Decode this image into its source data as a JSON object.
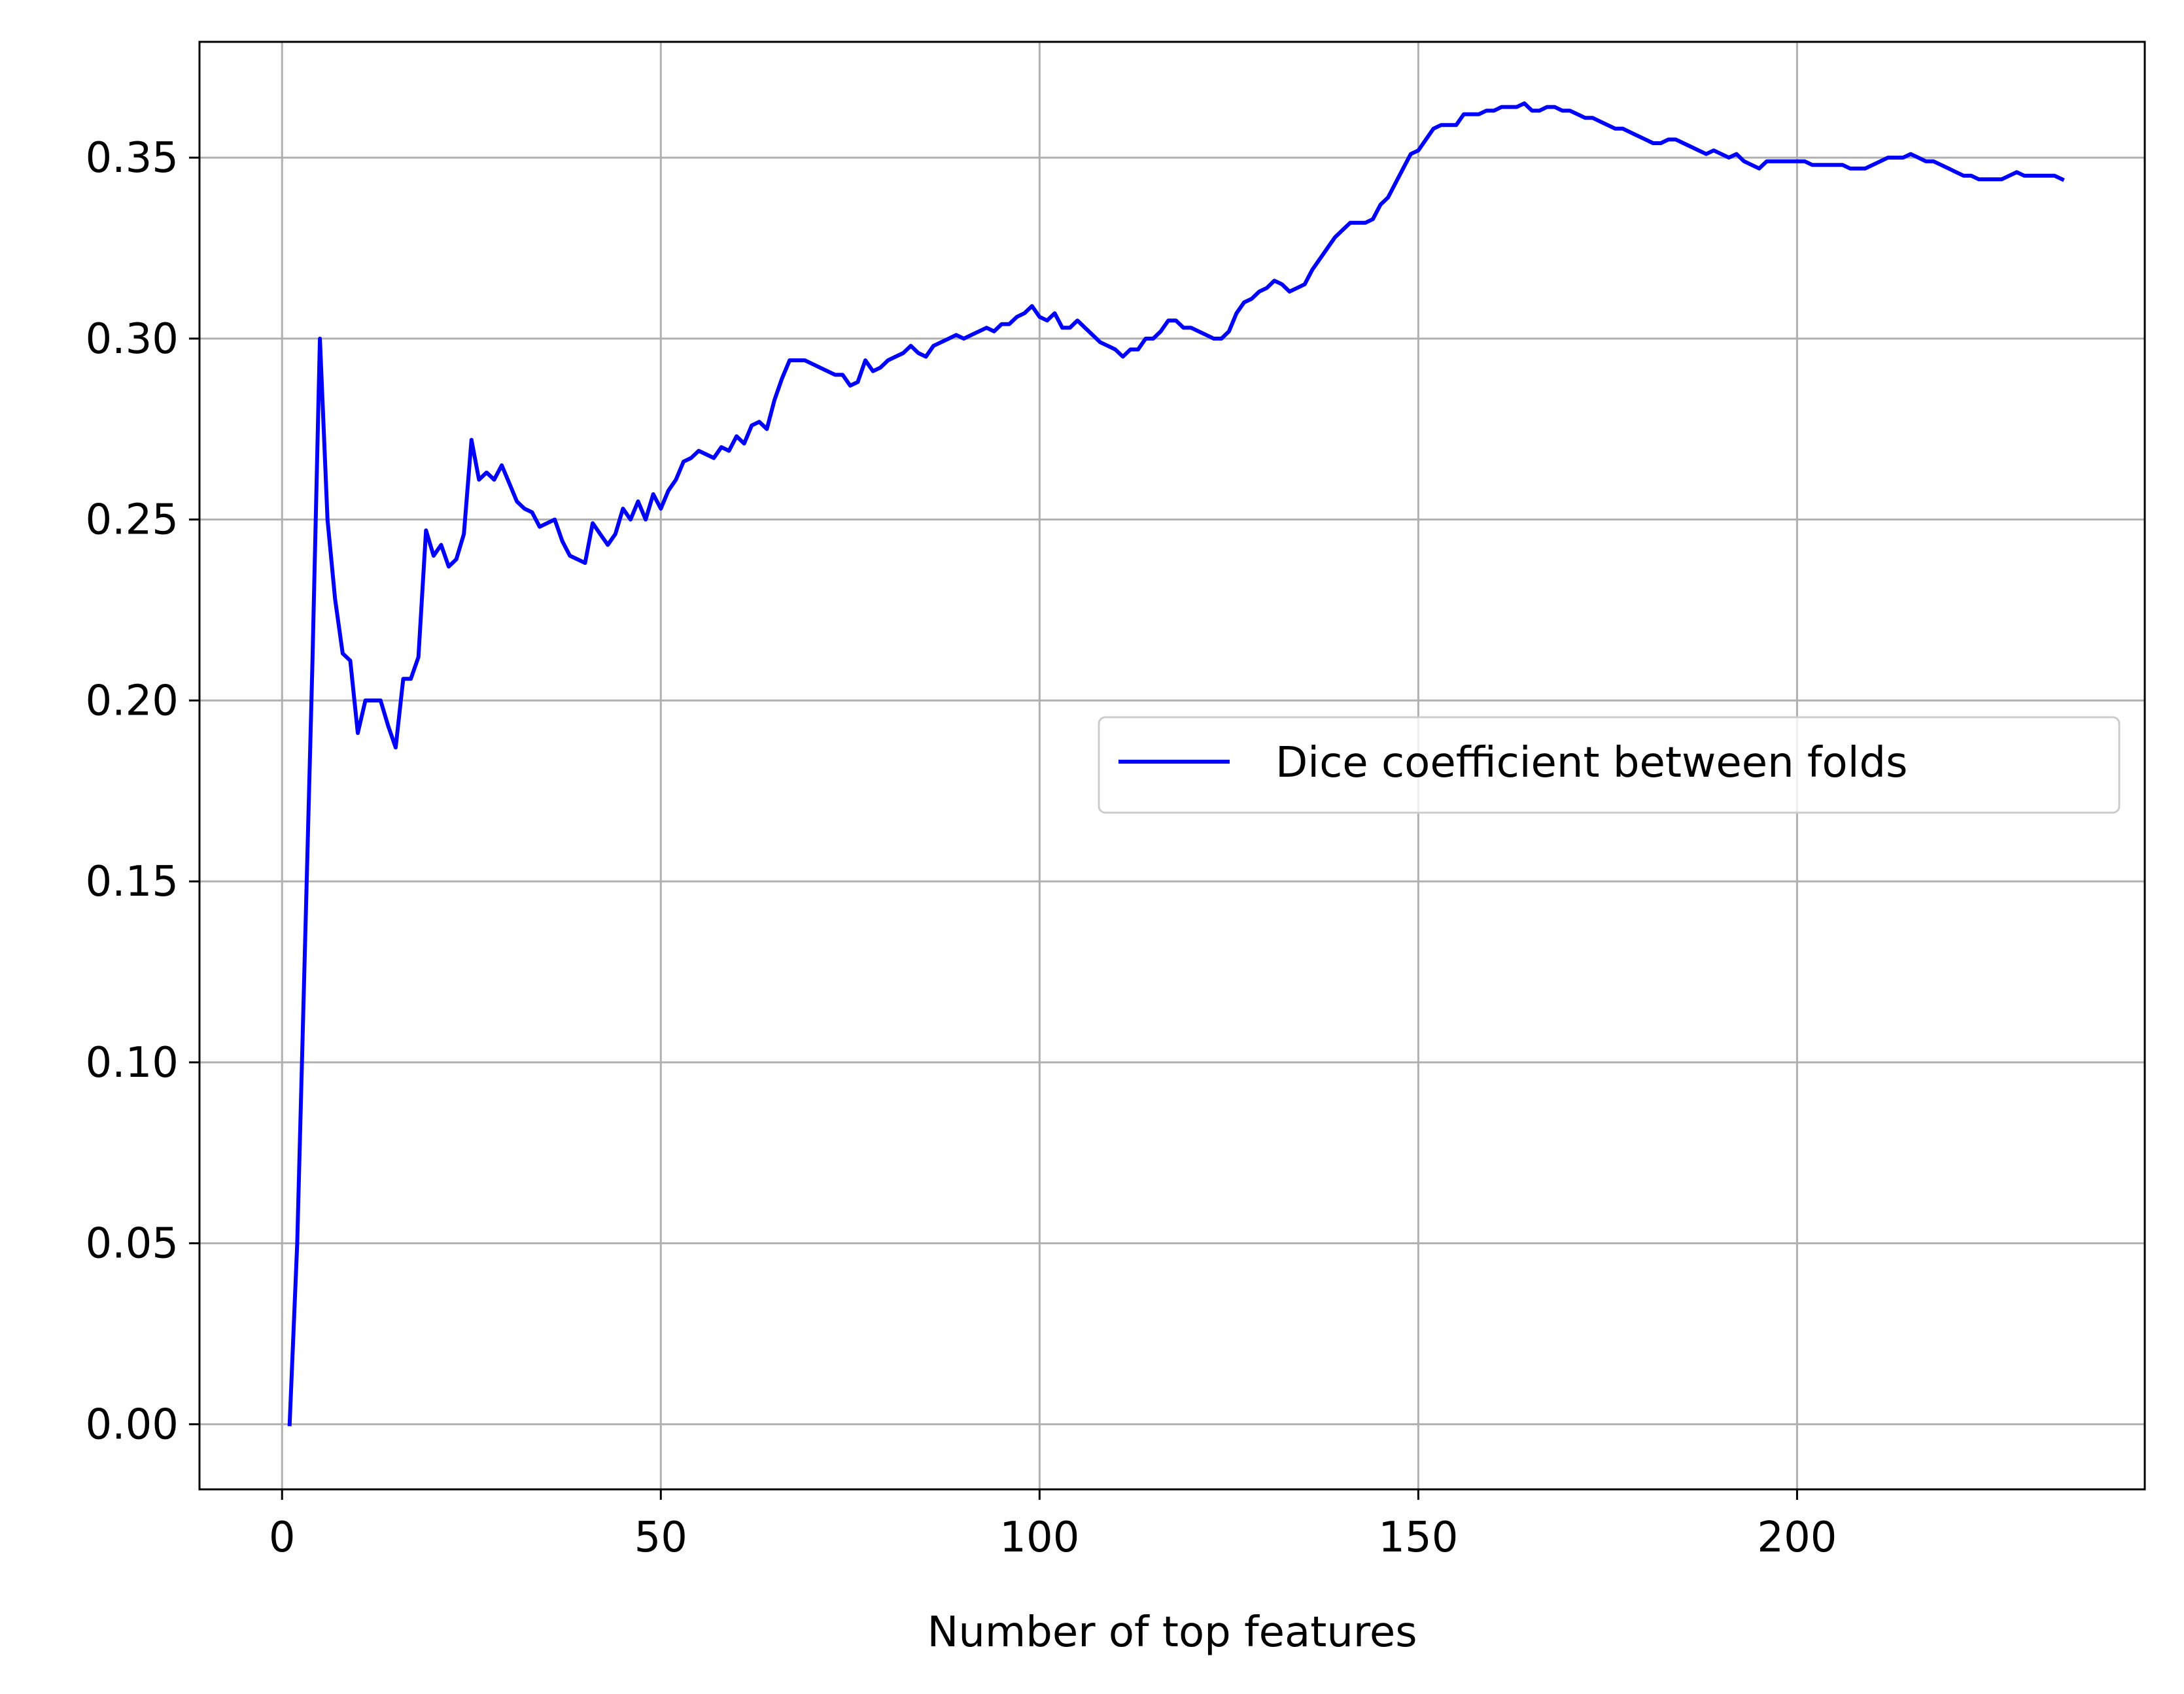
{
  "chart_data": {
    "type": "line",
    "title": "",
    "xlabel": "Number of top features",
    "ylabel": "",
    "xlim": [
      -10.9,
      245.9
    ],
    "ylim": [
      -0.018,
      0.382
    ],
    "xticks": [
      0,
      50,
      100,
      150,
      200
    ],
    "xtick_labels": [
      "0",
      "50",
      "100",
      "150",
      "200"
    ],
    "yticks": [
      0.0,
      0.05,
      0.1,
      0.15,
      0.2,
      0.25,
      0.3,
      0.35
    ],
    "ytick_labels": [
      "0.00",
      "0.05",
      "0.10",
      "0.15",
      "0.20",
      "0.25",
      "0.30",
      "0.35"
    ],
    "grid": true,
    "legend_position": "center-right",
    "series": [
      {
        "name": "Dice coefficient between folds",
        "color": "#0000ff",
        "x": [
          1,
          2,
          3,
          4,
          5,
          6,
          7,
          8,
          9,
          10,
          11,
          12,
          13,
          14,
          15,
          16,
          17,
          18,
          19,
          20,
          21,
          22,
          23,
          24,
          25,
          26,
          27,
          28,
          29,
          30,
          31,
          32,
          33,
          34,
          35,
          36,
          37,
          38,
          39,
          40,
          41,
          42,
          43,
          44,
          45,
          46,
          47,
          48,
          49,
          50,
          51,
          52,
          53,
          54,
          55,
          56,
          57,
          58,
          59,
          60,
          61,
          62,
          63,
          64,
          65,
          66,
          67,
          68,
          69,
          70,
          71,
          72,
          73,
          74,
          75,
          76,
          77,
          78,
          79,
          80,
          81,
          82,
          83,
          84,
          85,
          86,
          87,
          88,
          89,
          90,
          91,
          92,
          93,
          94,
          95,
          96,
          97,
          98,
          99,
          100,
          101,
          102,
          103,
          104,
          105,
          106,
          107,
          108,
          109,
          110,
          111,
          112,
          113,
          114,
          115,
          116,
          117,
          118,
          119,
          120,
          121,
          122,
          123,
          124,
          125,
          126,
          127,
          128,
          129,
          130,
          131,
          132,
          133,
          134,
          135,
          136,
          137,
          138,
          139,
          140,
          141,
          142,
          143,
          144,
          145,
          146,
          147,
          148,
          149,
          150,
          151,
          152,
          153,
          154,
          155,
          156,
          157,
          158,
          159,
          160,
          161,
          162,
          163,
          164,
          165,
          166,
          167,
          168,
          169,
          170,
          171,
          172,
          173,
          174,
          175,
          176,
          177,
          178,
          179,
          180,
          181,
          182,
          183,
          184,
          185,
          186,
          187,
          188,
          189,
          190,
          191,
          192,
          193,
          194,
          195,
          196,
          197,
          198,
          199,
          200,
          201,
          202,
          203,
          204,
          205,
          206,
          207,
          208,
          209,
          210,
          211,
          212,
          213,
          214,
          215,
          216,
          217,
          218,
          219,
          220,
          221,
          222,
          223,
          224,
          225,
          226,
          227,
          228,
          229,
          230,
          231,
          232,
          233,
          234,
          235
        ],
        "y": [
          0.0,
          0.05,
          0.13,
          0.21,
          0.3,
          0.25,
          0.228,
          0.213,
          0.211,
          0.191,
          0.2,
          0.2,
          0.2,
          0.193,
          0.187,
          0.206,
          0.206,
          0.212,
          0.247,
          0.24,
          0.243,
          0.237,
          0.239,
          0.246,
          0.272,
          0.261,
          0.263,
          0.261,
          0.265,
          0.26,
          0.255,
          0.253,
          0.252,
          0.248,
          0.249,
          0.25,
          0.244,
          0.24,
          0.239,
          0.238,
          0.249,
          0.246,
          0.243,
          0.246,
          0.253,
          0.25,
          0.255,
          0.25,
          0.257,
          0.253,
          0.258,
          0.261,
          0.266,
          0.267,
          0.269,
          0.268,
          0.267,
          0.27,
          0.269,
          0.273,
          0.271,
          0.276,
          0.277,
          0.275,
          0.283,
          0.289,
          0.294,
          0.294,
          0.294,
          0.293,
          0.292,
          0.291,
          0.29,
          0.29,
          0.287,
          0.288,
          0.294,
          0.291,
          0.292,
          0.294,
          0.295,
          0.296,
          0.298,
          0.296,
          0.295,
          0.298,
          0.299,
          0.3,
          0.301,
          0.3,
          0.301,
          0.302,
          0.303,
          0.302,
          0.304,
          0.304,
          0.306,
          0.307,
          0.309,
          0.306,
          0.305,
          0.307,
          0.303,
          0.303,
          0.305,
          0.303,
          0.301,
          0.299,
          0.298,
          0.297,
          0.295,
          0.297,
          0.297,
          0.3,
          0.3,
          0.302,
          0.305,
          0.305,
          0.303,
          0.303,
          0.302,
          0.301,
          0.3,
          0.3,
          0.302,
          0.307,
          0.31,
          0.311,
          0.313,
          0.314,
          0.316,
          0.315,
          0.313,
          0.314,
          0.315,
          0.319,
          0.322,
          0.325,
          0.328,
          0.33,
          0.332,
          0.332,
          0.332,
          0.333,
          0.337,
          0.339,
          0.343,
          0.347,
          0.351,
          0.352,
          0.355,
          0.358,
          0.359,
          0.359,
          0.359,
          0.362,
          0.362,
          0.362,
          0.363,
          0.363,
          0.364,
          0.364,
          0.364,
          0.365,
          0.363,
          0.363,
          0.364,
          0.364,
          0.363,
          0.363,
          0.362,
          0.361,
          0.361,
          0.36,
          0.359,
          0.358,
          0.358,
          0.357,
          0.356,
          0.355,
          0.354,
          0.354,
          0.355,
          0.355,
          0.354,
          0.353,
          0.352,
          0.351,
          0.352,
          0.351,
          0.35,
          0.351,
          0.349,
          0.348,
          0.347,
          0.349,
          0.349,
          0.349,
          0.349,
          0.349,
          0.349,
          0.348,
          0.348,
          0.348,
          0.348,
          0.348,
          0.347,
          0.347,
          0.347,
          0.348,
          0.349,
          0.35,
          0.35,
          0.35,
          0.351,
          0.35,
          0.349,
          0.349,
          0.348,
          0.347,
          0.346,
          0.345,
          0.345,
          0.344,
          0.344,
          0.344,
          0.344,
          0.345,
          0.346,
          0.345,
          0.345,
          0.345,
          0.345,
          0.345,
          0.344
        ]
      }
    ]
  }
}
